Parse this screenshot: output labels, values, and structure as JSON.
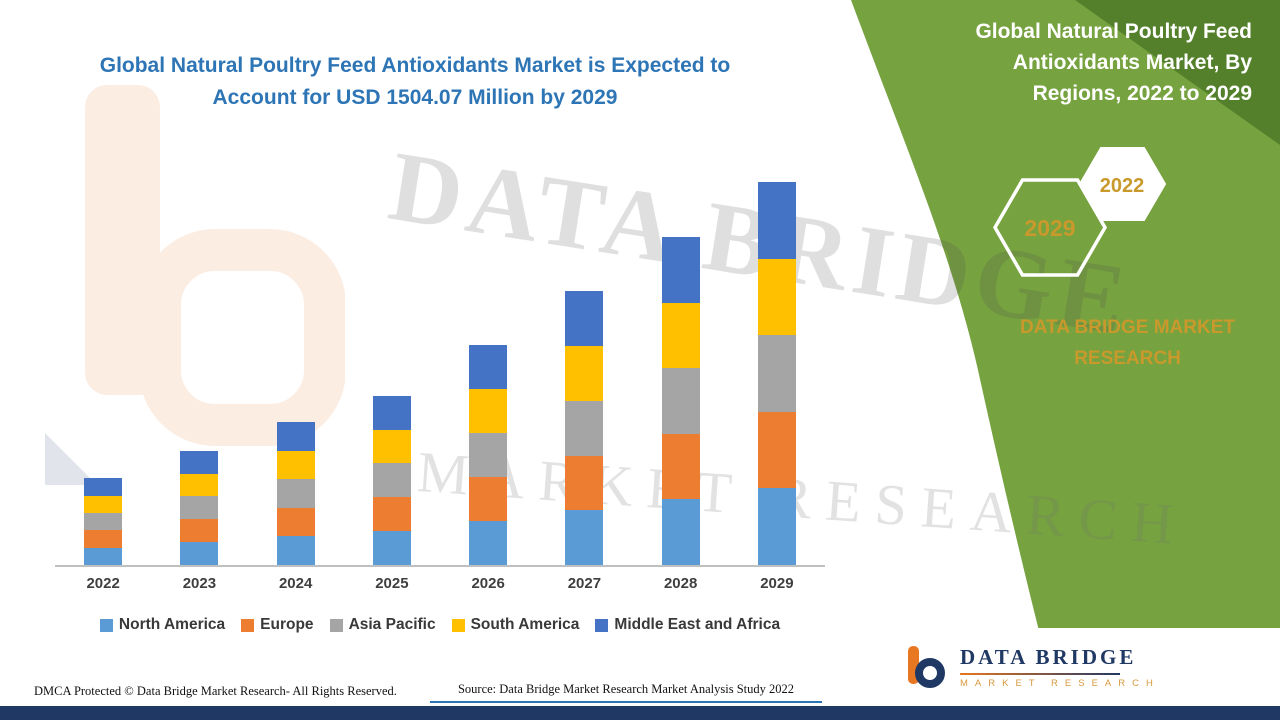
{
  "header": {
    "title_line1": "Global Natural Poultry Feed Antioxidants Market is Expected to",
    "title_line2": "Account for USD 1504.07 Million by 2029"
  },
  "side_panel": {
    "title": "Global Natural Poultry Feed Antioxidants Market, By Regions, 2022 to 2029",
    "hexagon_back_year": "2029",
    "hexagon_front_year": "2022",
    "brand_text": "DATA BRIDGE MARKET RESEARCH",
    "green_color": "#76A240",
    "dark_green_color": "#55802B",
    "gold_color": "#C9992C"
  },
  "watermark": {
    "line1": "DATA BRIDGE",
    "line2": "MARKET RESEARCH"
  },
  "chart_data": {
    "type": "bar",
    "stacked": true,
    "unit": "USD Million",
    "title": "Global Natural Poultry Feed Antioxidants Market, By Regions, 2022 to 2029",
    "categories": [
      "2022",
      "2023",
      "2024",
      "2025",
      "2026",
      "2027",
      "2028",
      "2029"
    ],
    "series": [
      {
        "name": "North America",
        "color": "#5B9BD5",
        "values": [
          68,
          90,
          112,
          133,
          173,
          215,
          258,
          301
        ]
      },
      {
        "name": "Europe",
        "color": "#ED7D31",
        "values": [
          68,
          90,
          112,
          133,
          173,
          215,
          258,
          301
        ]
      },
      {
        "name": "Asia Pacific",
        "color": "#A5A5A5",
        "values": [
          68,
          90,
          112,
          133,
          173,
          215,
          258,
          301
        ]
      },
      {
        "name": "South America",
        "color": "#FFC000",
        "values": [
          68,
          89,
          113,
          132,
          172,
          216,
          257,
          300
        ]
      },
      {
        "name": "Middle East and Africa",
        "color": "#4472C4",
        "values": [
          70,
          89,
          113,
          133,
          173,
          216,
          258,
          301.07
        ]
      }
    ],
    "ylim": [
      0,
      1504.07
    ],
    "grid": false,
    "legend_position": "bottom"
  },
  "footer": {
    "dmca": "DMCA Protected © Data Bridge Market Research- All Rights Reserved.",
    "source": "Source: Data Bridge Market Research Market Analysis Study 2022",
    "logo_name": "DATA BRIDGE",
    "logo_tagline": "MARKET RESEARCH"
  }
}
